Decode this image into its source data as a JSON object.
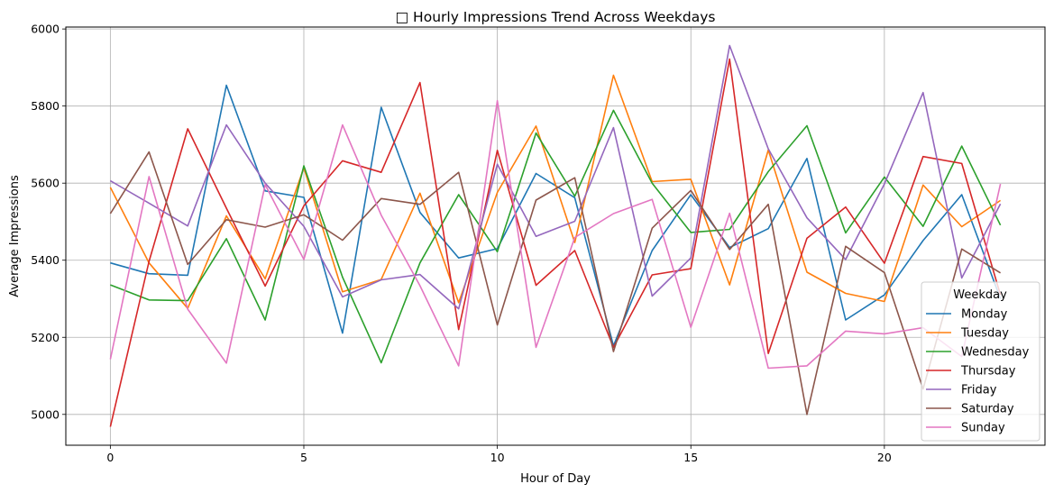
{
  "chart_data": {
    "type": "line",
    "title": "□ Hourly Impressions Trend Across Weekdays",
    "xlabel": "Hour of Day",
    "ylabel": "Average Impressions",
    "xlim": [
      -1.15,
      24.15
    ],
    "ylim": [
      4920,
      6005
    ],
    "xticks": [
      0,
      5,
      10,
      15,
      20
    ],
    "yticks": [
      5000,
      5200,
      5400,
      5600,
      5800,
      6000
    ],
    "grid": true,
    "legend": {
      "title": "Weekday",
      "placement": "lower-right"
    },
    "x": [
      0,
      1,
      2,
      3,
      4,
      5,
      6,
      7,
      8,
      9,
      10,
      11,
      12,
      13,
      14,
      15,
      16,
      17,
      18,
      19,
      20,
      21,
      22,
      23
    ],
    "series": [
      {
        "name": "Monday",
        "color": "#1f77b4",
        "values": [
          5393,
          5365,
          5361,
          5854,
          5580,
          5563,
          5211,
          5797,
          5524,
          5406,
          5430,
          5625,
          5562,
          5178,
          5425,
          5570,
          5433,
          5482,
          5664,
          5245,
          5310,
          5451,
          5570,
          5300
        ]
      },
      {
        "name": "Tuesday",
        "color": "#ff7f0e",
        "values": [
          5589,
          5393,
          5275,
          5515,
          5352,
          5640,
          5318,
          5350,
          5574,
          5290,
          5576,
          5748,
          5446,
          5880,
          5604,
          5610,
          5336,
          5686,
          5369,
          5314,
          5293,
          5595,
          5487,
          5555
        ]
      },
      {
        "name": "Wednesday",
        "color": "#2ca02c",
        "values": [
          5336,
          5297,
          5295,
          5456,
          5245,
          5645,
          5356,
          5134,
          5393,
          5570,
          5422,
          5730,
          5566,
          5789,
          5600,
          5472,
          5480,
          5630,
          5749,
          5471,
          5616,
          5488,
          5696,
          5491
        ]
      },
      {
        "name": "Thursday",
        "color": "#d62728",
        "values": [
          4968,
          5397,
          5741,
          5535,
          5333,
          5541,
          5658,
          5628,
          5861,
          5220,
          5685,
          5335,
          5425,
          5174,
          5362,
          5378,
          5922,
          5158,
          5457,
          5538,
          5392,
          5669,
          5651,
          5310
        ]
      },
      {
        "name": "Friday",
        "color": "#9467bd",
        "values": [
          5606,
          5548,
          5489,
          5751,
          5600,
          5488,
          5305,
          5349,
          5363,
          5274,
          5649,
          5462,
          5501,
          5744,
          5307,
          5406,
          5957,
          5689,
          5510,
          5402,
          5598,
          5835,
          5354,
          5546
        ]
      },
      {
        "name": "Saturday",
        "color": "#8c564b",
        "values": [
          5521,
          5681,
          5389,
          5505,
          5486,
          5518,
          5452,
          5560,
          5545,
          5628,
          5232,
          5556,
          5614,
          5163,
          5483,
          5581,
          5428,
          5545,
          5000,
          5436,
          5368,
          5066,
          5429,
          5367
        ]
      },
      {
        "name": "Sunday",
        "color": "#e377c2",
        "values": [
          5143,
          5617,
          5273,
          5133,
          5596,
          5402,
          5751,
          5517,
          5334,
          5126,
          5814,
          5174,
          5459,
          5521,
          5558,
          5226,
          5522,
          5120,
          5126,
          5216,
          5209,
          5225,
          5150,
          5598
        ]
      }
    ]
  }
}
